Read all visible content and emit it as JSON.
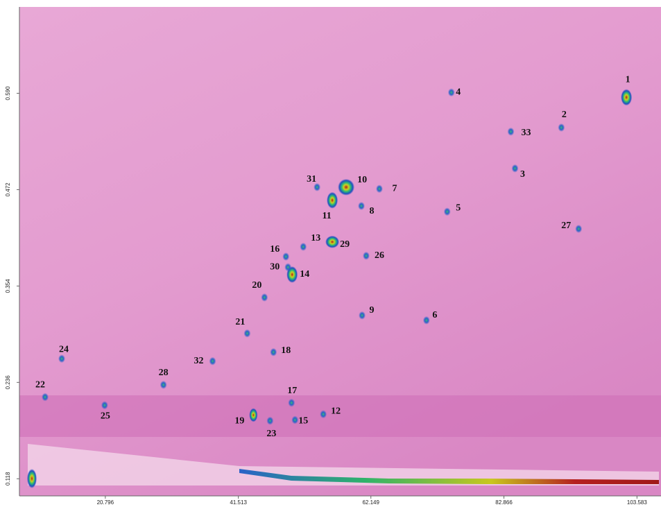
{
  "chart_data": {
    "type": "scatter",
    "point_labels": [
      "1",
      "2",
      "3",
      "4",
      "5",
      "6",
      "7",
      "8",
      "9",
      "10",
      "11",
      "12",
      "13",
      "14",
      "15",
      "16",
      "17",
      "18",
      "19",
      "20",
      "21",
      "22",
      "23",
      "24",
      "25",
      "26",
      "27",
      "28",
      "29",
      "30",
      "31",
      "32",
      "33"
    ],
    "x": [
      101.94,
      91.81,
      84.59,
      74.68,
      74.03,
      70.8,
      63.47,
      60.67,
      60.78,
      58.3,
      56.14,
      54.74,
      51.62,
      49.89,
      50.33,
      48.92,
      49.79,
      46.98,
      43.86,
      45.58,
      42.89,
      11.42,
      46.45,
      14.01,
      20.69,
      61.42,
      94.5,
      29.85,
      56.14,
      49.24,
      53.77,
      37.5,
      83.94
    ],
    "values": [
      0.585,
      0.548,
      0.498,
      0.591,
      0.445,
      0.312,
      0.473,
      0.452,
      0.318,
      0.475,
      0.459,
      0.197,
      0.402,
      0.368,
      0.19,
      0.39,
      0.211,
      0.273,
      0.196,
      0.34,
      0.296,
      0.218,
      0.189,
      0.265,
      0.208,
      0.391,
      0.424,
      0.233,
      0.408,
      0.377,
      0.475,
      0.262,
      0.543
    ],
    "xlim": [
      8.5,
      107
    ],
    "ylim": [
      0.097,
      0.694
    ],
    "xticks": [
      {
        "value": 20.796,
        "label": "20.796"
      },
      {
        "value": 41.513,
        "label": "41.513"
      },
      {
        "value": 62.149,
        "label": "62.149"
      },
      {
        "value": 82.866,
        "label": "82.866"
      },
      {
        "value": 103.583,
        "label": "103.583"
      }
    ],
    "yticks": [
      {
        "value": 0.118,
        "label": "0.118"
      },
      {
        "value": 0.236,
        "label": "0.236"
      },
      {
        "value": 0.354,
        "label": "0.354"
      },
      {
        "value": 0.472,
        "label": "0.472"
      },
      {
        "value": 0.59,
        "label": "0.590"
      }
    ]
  }
}
